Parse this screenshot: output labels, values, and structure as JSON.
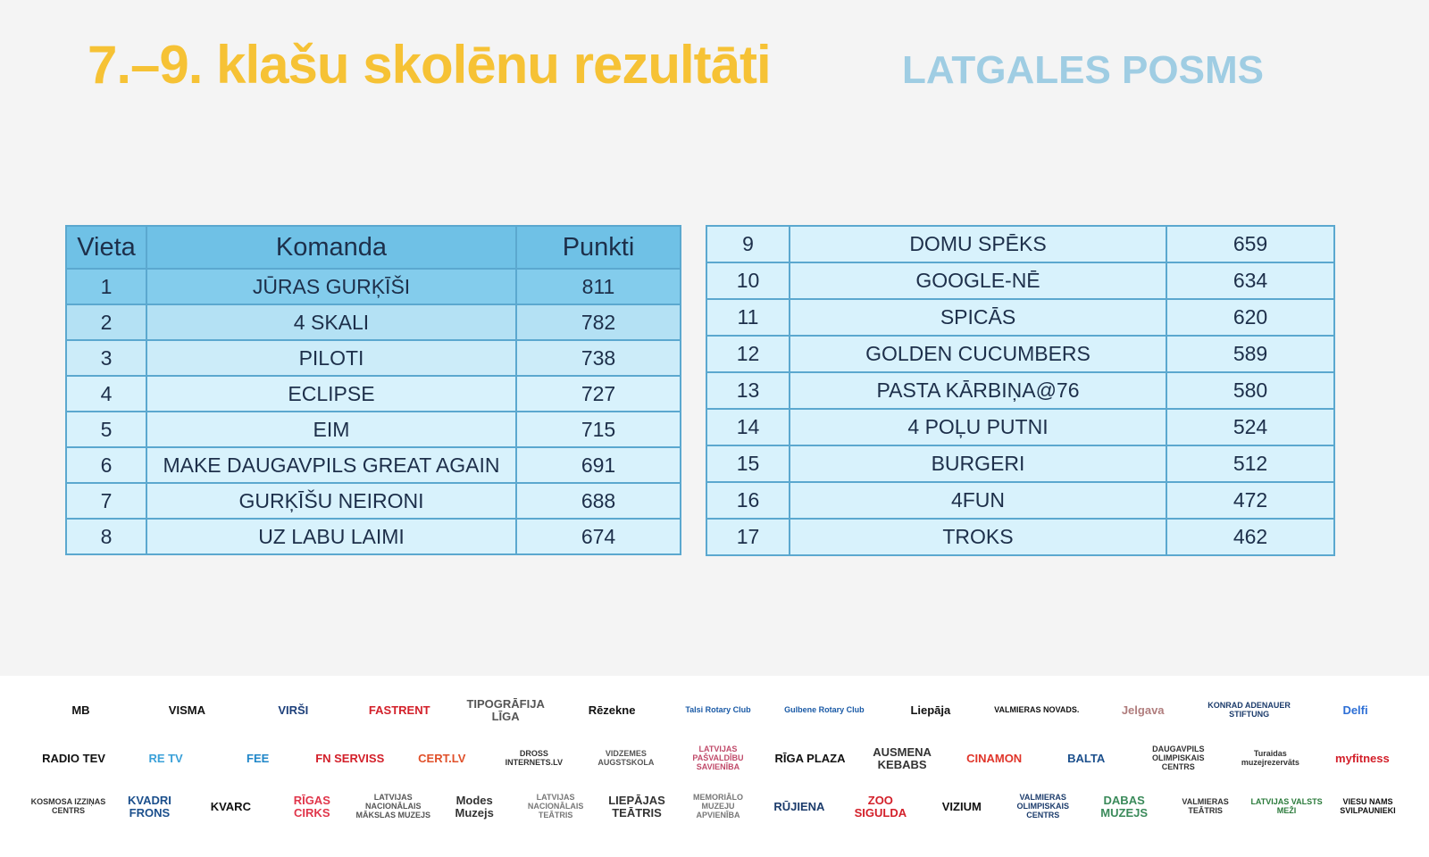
{
  "title": "7.–9. klašu skolēnu rezultāti",
  "subtitle": "LATGALES POSMS",
  "table_left": {
    "headers": [
      "Vieta",
      "Komanda",
      "Punkti"
    ],
    "rows": [
      [
        "1",
        "JŪRAS GURĶĪŠI",
        "811"
      ],
      [
        "2",
        "4 SKALI",
        "782"
      ],
      [
        "3",
        "PILOTI",
        "738"
      ],
      [
        "4",
        "ECLIPSE",
        "727"
      ],
      [
        "5",
        "EIM",
        "715"
      ],
      [
        "6",
        "MAKE DAUGAVPILS GREAT AGAIN",
        "691"
      ],
      [
        "7",
        "GURĶĪŠU NEIRONI",
        "688"
      ],
      [
        "8",
        "UZ LABU LAIMI",
        "674"
      ]
    ]
  },
  "table_right": {
    "rows": [
      [
        "9",
        "DOMU SPĒKS",
        "659"
      ],
      [
        "10",
        "GOOGLE-NĒ",
        "634"
      ],
      [
        "11",
        "SPICĀS",
        "620"
      ],
      [
        "12",
        "GOLDEN CUCUMBERS",
        "589"
      ],
      [
        "13",
        "PASTA KĀRBIŅA@76",
        "580"
      ],
      [
        "14",
        "4 POĻU PUTNI",
        "524"
      ],
      [
        "15",
        "BURGERI",
        "512"
      ],
      [
        "16",
        "4FUN",
        "472"
      ],
      [
        "17",
        "TROKS",
        "462"
      ]
    ]
  },
  "sponsors": [
    [
      {
        "t": "MB",
        "c": "#111"
      },
      {
        "t": "VISMA",
        "c": "#111"
      },
      {
        "t": "VIRŠI",
        "c": "#1d3f7a"
      },
      {
        "t": "FASTRENT",
        "c": "#d3202a"
      },
      {
        "t": "TIPOGRĀFIJA LĪGA",
        "c": "#555"
      },
      {
        "t": "Rēzekne",
        "c": "#111"
      },
      {
        "t": "Talsi Rotary Club",
        "c": "#1a5aa6"
      },
      {
        "t": "Gulbene Rotary Club",
        "c": "#1a5aa6"
      },
      {
        "t": "Liepāja",
        "c": "#111"
      },
      {
        "t": "VALMIERAS NOVADS.",
        "c": "#111"
      },
      {
        "t": "Jelgava",
        "c": "#b07d7d"
      },
      {
        "t": "KONRAD ADENAUER STIFTUNG",
        "c": "#1b3b6b"
      },
      {
        "t": "Delfi",
        "c": "#2d6fd6"
      }
    ],
    [
      {
        "t": "RADIO TEV",
        "c": "#111"
      },
      {
        "t": "RE TV",
        "c": "#3aa0d8"
      },
      {
        "t": "FEE",
        "c": "#1f86c8"
      },
      {
        "t": "FN SERVISS",
        "c": "#d3202a"
      },
      {
        "t": "CERT.LV",
        "c": "#e0502a"
      },
      {
        "t": "DROSS INTERNETS.LV",
        "c": "#333"
      },
      {
        "t": "VIDZEMES AUGSTSKOLA",
        "c": "#555"
      },
      {
        "t": "LATVIJAS PAŠVALDĪBU SAVIENĪBA",
        "c": "#c04a6a"
      },
      {
        "t": "RĪGA PLAZA",
        "c": "#111"
      },
      {
        "t": "AUSMENA KEBABS",
        "c": "#333"
      },
      {
        "t": "CINAMON",
        "c": "#e0352a"
      },
      {
        "t": "BALTA",
        "c": "#1b4f8c"
      },
      {
        "t": "DAUGAVPILS OLIMPISKAIS CENTRS",
        "c": "#333"
      },
      {
        "t": "Turaidas muzejrezervāts",
        "c": "#333"
      },
      {
        "t": "myfitness",
        "c": "#d3202a"
      }
    ],
    [
      {
        "t": "KOSMOSA IZZIŅAS CENTRS",
        "c": "#333"
      },
      {
        "t": "KVADRI FRONS",
        "c": "#1b4f8c"
      },
      {
        "t": "KVARC",
        "c": "#111"
      },
      {
        "t": "RĪGAS CIRKS",
        "c": "#e0354a"
      },
      {
        "t": "LATVIJAS NACIONĀLAIS MĀKSLAS MUZEJS",
        "c": "#555"
      },
      {
        "t": "Modes Muzejs",
        "c": "#333"
      },
      {
        "t": "LATVIJAS NACIONĀLAIS TEĀTRIS",
        "c": "#777"
      },
      {
        "t": "LIEPĀJAS TEĀTRIS",
        "c": "#333"
      },
      {
        "t": "MEMORIĀLO MUZEJU APVIENĪBA",
        "c": "#777"
      },
      {
        "t": "RŪJIENA",
        "c": "#1b3b6b"
      },
      {
        "t": "ZOO SIGULDA",
        "c": "#d3202a"
      },
      {
        "t": "VIZIUM",
        "c": "#111"
      },
      {
        "t": "VALMIERAS OLIMPISKAIS CENTRS",
        "c": "#1b3b6b"
      },
      {
        "t": "DABAS MUZEJS",
        "c": "#3a8a5a"
      },
      {
        "t": "VALMIERAS TEĀTRIS",
        "c": "#333"
      },
      {
        "t": "LATVIJAS VALSTS MEŽI",
        "c": "#2a7a3a"
      },
      {
        "t": "VIESU NAMS SVILPAUNIEKI",
        "c": "#111"
      }
    ]
  ]
}
